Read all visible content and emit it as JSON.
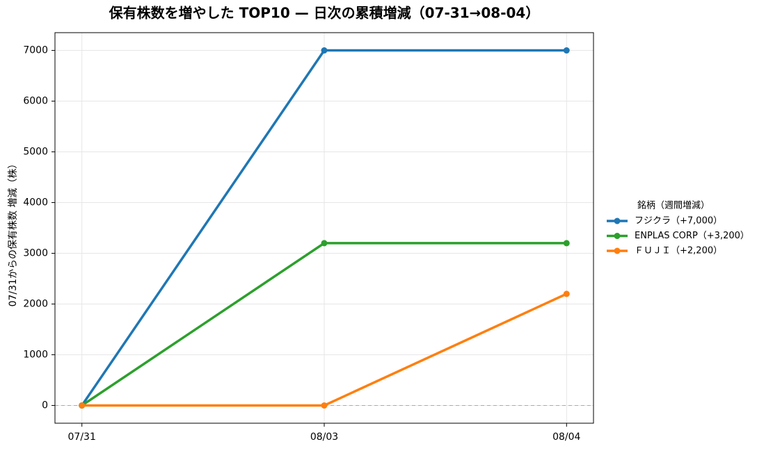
{
  "chart_data": {
    "type": "line",
    "title": "保有株数を増やした TOP10 — 日次の累積増減（07-31→08-04）",
    "ylabel": "07/31からの保有株数 増減（株）",
    "categories": [
      "07/31",
      "08/03",
      "08/04"
    ],
    "series": [
      {
        "name": "フジクラ（+7,000）",
        "color": "#1f77b4",
        "values": [
          0,
          7000,
          7000
        ]
      },
      {
        "name": "ENPLAS CORP（+3,200）",
        "color": "#2ca02c",
        "values": [
          0,
          3200,
          3200
        ]
      },
      {
        "name": "ＦＵＪＩ（+2,200）",
        "color": "#ff7f0e",
        "values": [
          0,
          0,
          2200
        ]
      }
    ],
    "ylim": [
      -350,
      7350
    ],
    "yticks": [
      0,
      1000,
      2000,
      3000,
      4000,
      5000,
      6000,
      7000
    ],
    "grid": true,
    "zero_line": true,
    "legend_title": "銘柄（週間増減）",
    "legend_position": "right"
  }
}
